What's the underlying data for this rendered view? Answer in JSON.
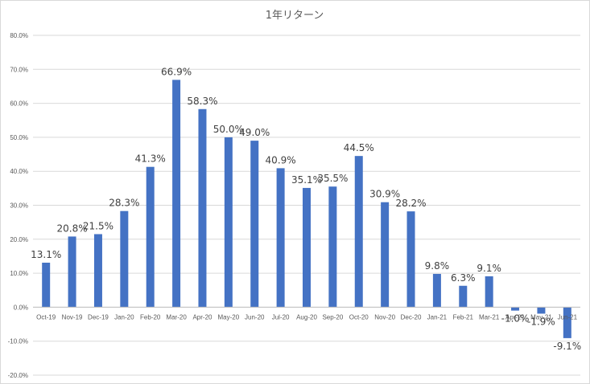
{
  "chart_data": {
    "type": "bar",
    "title": "1年リターン",
    "xlabel": "",
    "ylabel": "",
    "ylim": [
      -20,
      80
    ],
    "ytick_step": 10,
    "grid": true,
    "legend": "none",
    "bar_color": "#4472c4",
    "categories": [
      "Oct-19",
      "Nov-19",
      "Dec-19",
      "Jan-20",
      "Feb-20",
      "Mar-20",
      "Apr-20",
      "May-20",
      "Jun-20",
      "Jul-20",
      "Aug-20",
      "Sep-20",
      "Oct-20",
      "Nov-20",
      "Dec-20",
      "Jan-21",
      "Feb-21",
      "Mar-21",
      "Apr-21",
      "May-21",
      "Jun-21"
    ],
    "category_labels": [
      "Oct-19",
      "Nov-19",
      "Dec-19",
      "Jan-20",
      "Feb-20",
      "Mar-20",
      "Apr-20",
      "May-20",
      "Jun-20",
      "Jul-20",
      "Aug-20",
      "Sep-20",
      "Oct-20",
      "Nov-20",
      "Dec-20",
      "Jan-21",
      "Feb-21",
      "Mar-21",
      "Apr-21",
      "May-21",
      "Jun-21"
    ],
    "values": [
      13.1,
      20.8,
      21.5,
      28.3,
      41.3,
      66.9,
      58.3,
      50.0,
      49.0,
      40.9,
      35.1,
      35.5,
      44.5,
      30.9,
      28.2,
      9.8,
      6.3,
      9.1,
      -1.0,
      -1.9,
      -9.1
    ],
    "data_labels": [
      "13.1%",
      "20.8%",
      "21.5%",
      "28.3%",
      "41.3%",
      "66.9%",
      "58.3%",
      "50.0%",
      "49.0%",
      "40.9%",
      "35.1%",
      "35.5%",
      "44.5%",
      "30.9%",
      "28.2%",
      "9.8%",
      "6.3%",
      "9.1%",
      "-1.0%",
      "-1.9%",
      "-9.1%"
    ],
    "ytick_labels": [
      "80.0%",
      "70.0%",
      "60.0%",
      "50.0%",
      "40.0%",
      "30.0%",
      "20.0%",
      "10.0%",
      "0.0%",
      "-10.0%",
      "-20.0%"
    ]
  }
}
